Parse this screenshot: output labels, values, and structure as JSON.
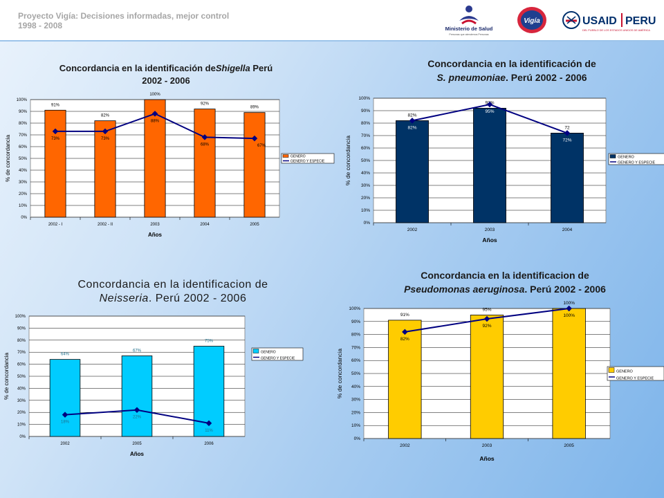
{
  "header": {
    "title": "Proyecto Vigía: Decisiones informadas, mejor control",
    "years": "1998 - 2008",
    "minsa_name": "Ministerio de Salud",
    "minsa_tagline": "Personas que atendemos Personas",
    "vigia_name": "Vigía",
    "usaid_name": "USAID",
    "usaid_country": "PERU",
    "usaid_tagline": "DEL PUEBLO DE LOS ESTADOS UNIDOS DE AMÉRICA"
  },
  "colors": {
    "shigella": "#ff6600",
    "pneumoniae": "#003366",
    "neisseria": "#00ccff",
    "pseudomonas": "#ffcc00",
    "line": "#000080"
  },
  "chart_data": [
    {
      "type": "bar",
      "title_parts": [
        "Concordancia en la identificación de",
        "Shigella",
        " Perú",
        "2002 - 2006"
      ],
      "categories": [
        "2002 - I",
        "2002 - II",
        "2003",
        "2004",
        "2005"
      ],
      "series": [
        {
          "name": "GENERO",
          "kind": "bar",
          "values": [
            91,
            82,
            100,
            92,
            89
          ],
          "labels": [
            "91%",
            "82%",
            "100%",
            "92%",
            "89%"
          ]
        },
        {
          "name": "GENERO Y ESPECIE",
          "kind": "line",
          "values": [
            73,
            73,
            88,
            68,
            67
          ],
          "labels": [
            "73%",
            "73%",
            "88%",
            "68%",
            "67%"
          ]
        }
      ],
      "xlabel": "Años",
      "ylabel": "% de concordancia",
      "yticks": [
        "0%",
        "10%",
        "20%",
        "30%",
        "40%",
        "50%",
        "60%",
        "70%",
        "80%",
        "90%",
        "100%"
      ],
      "ylim": [
        0,
        100
      ],
      "grid": true,
      "legend": "right"
    },
    {
      "type": "bar",
      "title_parts": [
        "Concordancia en la identificación de",
        "S. pneumoniae",
        ". Perú 2002 - 2006"
      ],
      "categories": [
        "2002",
        "2003",
        "2004"
      ],
      "series": [
        {
          "name": "GENERO",
          "kind": "bar",
          "values": [
            82,
            92,
            72
          ],
          "labels": [
            "82%",
            "92%",
            "72"
          ]
        },
        {
          "name": "GENERO Y ESPECIE",
          "kind": "line",
          "values": [
            82,
            95,
            72
          ],
          "labels": [
            "82%",
            "95%",
            "72%"
          ]
        }
      ],
      "xlabel": "Años",
      "ylabel": "% de concordancia",
      "yticks": [
        "0%",
        "10%",
        "20%",
        "30%",
        "40%",
        "50%",
        "60%",
        "70%",
        "80%",
        "90%",
        "100%"
      ],
      "ylim": [
        0,
        100
      ],
      "grid": true,
      "legend": "right"
    },
    {
      "type": "bar",
      "title_parts": [
        "Concordancia en la identificacion de",
        "Neisseria",
        ". Perú 2002 - 2006"
      ],
      "categories": [
        "2002",
        "2005",
        "2006"
      ],
      "series": [
        {
          "name": "GENERO",
          "kind": "bar",
          "values": [
            64,
            67,
            75
          ],
          "labels": [
            "64%",
            "67%",
            "75%"
          ]
        },
        {
          "name": "GENERO Y ESPECIE",
          "kind": "line",
          "values": [
            18,
            22,
            11
          ],
          "labels": [
            "18%",
            "22%",
            "11%"
          ]
        }
      ],
      "xlabel": "Años",
      "ylabel": "% de concordancia",
      "yticks": [
        "0%",
        "10%",
        "20%",
        "30%",
        "40%",
        "50%",
        "60%",
        "70%",
        "80%",
        "90%",
        "100%"
      ],
      "ylim": [
        0,
        100
      ],
      "grid": true,
      "legend": "right"
    },
    {
      "type": "bar",
      "title_parts": [
        "Concordancia en la identificacion de",
        "Pseudomonas aeruginosa",
        ". Perú 2002 - 2006"
      ],
      "categories": [
        "2002",
        "2003",
        "2005"
      ],
      "series": [
        {
          "name": "GENERO",
          "kind": "bar",
          "values": [
            91,
            95,
            100
          ],
          "labels": [
            "91%",
            "95%",
            "100%"
          ]
        },
        {
          "name": "GENERO Y ESPECIE",
          "kind": "line",
          "values": [
            82,
            92,
            100
          ],
          "labels": [
            "82%",
            "92%",
            "100%"
          ]
        }
      ],
      "xlabel": "Años",
      "ylabel": "% de concordancia",
      "yticks": [
        "0%",
        "10%",
        "20%",
        "30%",
        "40%",
        "50%",
        "60%",
        "70%",
        "80%",
        "90%",
        "100%"
      ],
      "ylim": [
        0,
        100
      ],
      "grid": true,
      "legend": "right"
    }
  ]
}
